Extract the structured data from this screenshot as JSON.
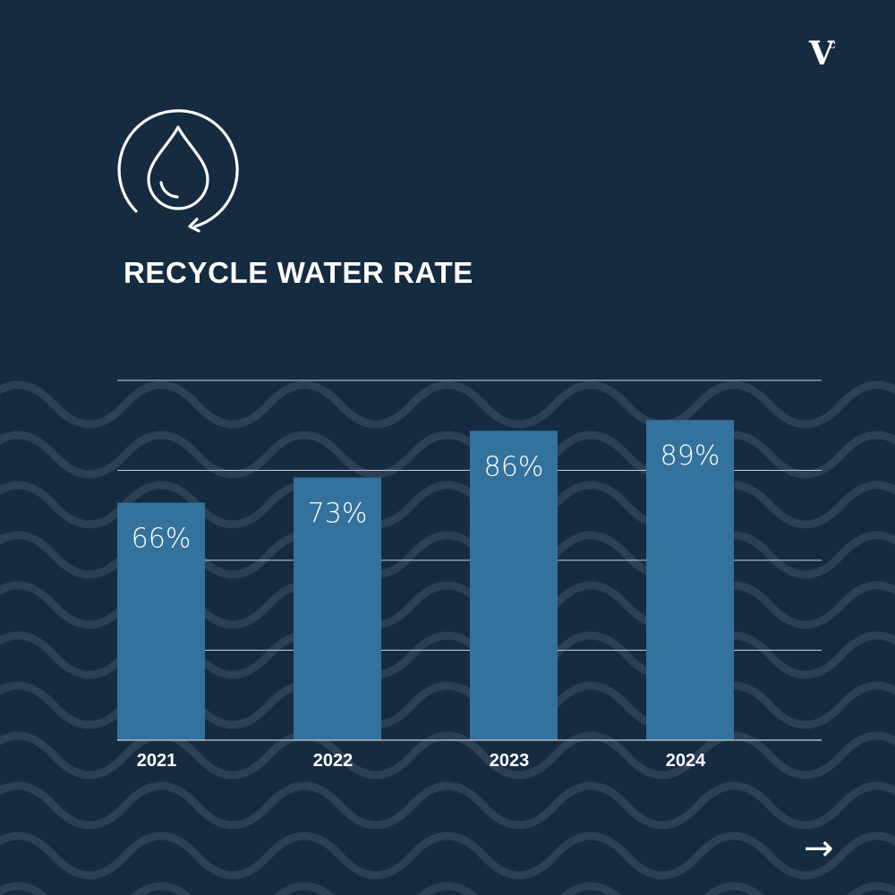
{
  "header": {
    "title": "RECYCLE WATER RATE",
    "logo_text": "V",
    "logo_superscript": "c"
  },
  "icons": {
    "water_recycle": "water-drop-recycle-icon",
    "next": "arrow-right-icon"
  },
  "footer": {
    "next_arrow": "→"
  },
  "colors": {
    "background": "#152b40",
    "bar": "#33729c",
    "wave": "#2b3f55",
    "grid": "#c7ced6",
    "text": "#ffffff"
  },
  "chart_data": {
    "type": "bar",
    "title": "RECYCLE WATER RATE",
    "categories": [
      "2021",
      "2022",
      "2023",
      "2024"
    ],
    "values": [
      66,
      73,
      86,
      89
    ],
    "value_labels": [
      "66%",
      "73%",
      "86%",
      "89%"
    ],
    "unit": "%",
    "ylim": [
      0,
      100
    ],
    "grid": true,
    "xlabel": "",
    "ylabel": ""
  }
}
